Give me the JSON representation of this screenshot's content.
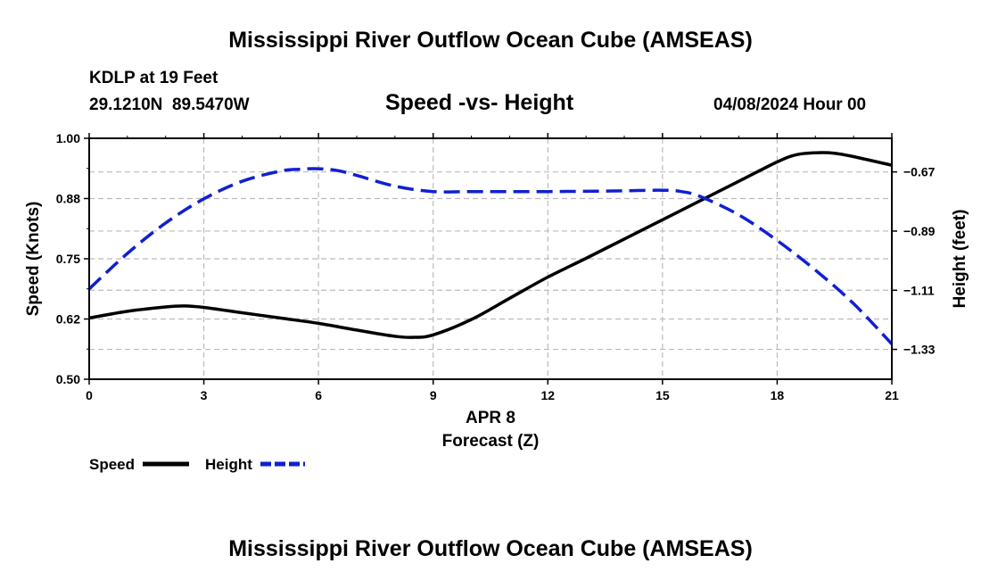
{
  "header": {
    "title": "Mississippi River Outflow Ocean Cube (AMSEAS)",
    "station": "KDLP at 19 Feet",
    "coords": "29.1210N  89.5470W",
    "chart_title": "Speed -vs- Height",
    "datetime": "04/08/2024 Hour 00",
    "footer_title": "Mississippi River Outflow Ocean Cube (AMSEAS)"
  },
  "colors": {
    "speed": "#000000",
    "height": "#1020d0",
    "grid": "#bbbbbb"
  },
  "chart_data": {
    "type": "line",
    "title": "Speed -vs- Height",
    "xlabel_date": "APR 8",
    "xlabel": "Forecast (Z)",
    "ylabel_left": "Speed (Knots)",
    "ylabel_right": "Height (feet)",
    "x_ticks": [
      0,
      3,
      6,
      9,
      12,
      15,
      18,
      21
    ],
    "x_tick_labels": [
      "0",
      "3",
      "6",
      "9",
      "12",
      "15",
      "18",
      "21"
    ],
    "xlim": [
      0,
      21
    ],
    "y_left_ticks": [
      0.5,
      0.625,
      0.75,
      0.875,
      1.0
    ],
    "y_left_tick_labels": [
      "0.50",
      "0.62",
      "0.75",
      "0.88",
      "1.00"
    ],
    "ylim_left": [
      0.5,
      1.0
    ],
    "y_right_ticks": [
      -0.67,
      -0.89,
      -1.11,
      -1.33
    ],
    "y_right_tick_labels": [
      "-0.67",
      "-0.89",
      "-1.11",
      "-1.33"
    ],
    "ylim_right": [
      -1.441,
      -0.545
    ],
    "grid": true,
    "series": [
      {
        "name": "Speed",
        "axis": "left",
        "style": "solid",
        "x": [
          0,
          1,
          2,
          2.5,
          3,
          4,
          5,
          6,
          7,
          8,
          8.5,
          9,
          10,
          11,
          12,
          13,
          14,
          15,
          16,
          17,
          18,
          18.5,
          19,
          19.5,
          20,
          21
        ],
        "values": [
          0.627,
          0.641,
          0.65,
          0.652,
          0.649,
          0.638,
          0.627,
          0.616,
          0.602,
          0.589,
          0.587,
          0.592,
          0.624,
          0.668,
          0.712,
          0.751,
          0.791,
          0.831,
          0.871,
          0.911,
          0.951,
          0.966,
          0.97,
          0.969,
          0.962,
          0.944
        ]
      },
      {
        "name": "Height",
        "axis": "right",
        "style": "dashed",
        "x": [
          0,
          1,
          2,
          3,
          4,
          5,
          5.5,
          6,
          6.5,
          7,
          8,
          9,
          10,
          11,
          12,
          13,
          14,
          15,
          15.5,
          16,
          17,
          18,
          19,
          20,
          21
        ],
        "values": [
          -1.105,
          -0.973,
          -0.86,
          -0.77,
          -0.705,
          -0.667,
          -0.66,
          -0.658,
          -0.665,
          -0.683,
          -0.723,
          -0.743,
          -0.743,
          -0.743,
          -0.743,
          -0.742,
          -0.74,
          -0.738,
          -0.743,
          -0.762,
          -0.83,
          -0.925,
          -1.035,
          -1.16,
          -1.31
        ]
      }
    ],
    "legend": {
      "position": "bottom-left",
      "entries": [
        "Speed",
        "Height"
      ]
    }
  }
}
